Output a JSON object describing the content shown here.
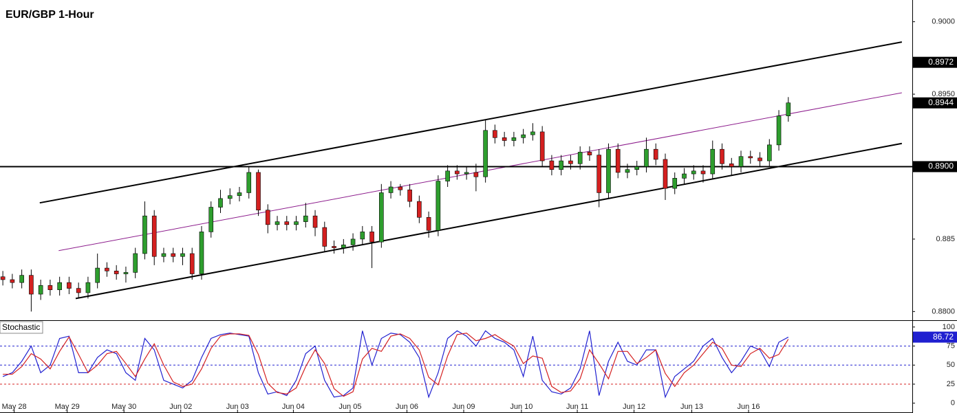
{
  "chart_data": [
    {
      "type": "candlestick",
      "title": "EUR/GBP 1-Hour",
      "x": [
        0,
        1,
        2,
        3,
        4,
        5,
        6,
        7,
        8,
        9,
        10,
        11,
        12,
        13,
        14,
        15,
        16,
        17,
        18,
        19,
        20,
        21,
        22,
        23,
        24,
        25,
        26,
        27,
        28,
        29,
        30,
        31,
        32,
        33,
        34,
        35,
        36,
        37,
        38,
        39,
        40,
        41,
        42,
        43,
        44,
        45,
        46,
        47,
        48,
        49,
        50,
        51,
        52,
        53,
        54,
        55,
        56,
        57,
        58,
        59,
        60,
        61,
        62,
        63,
        64,
        65,
        66,
        67,
        68,
        69,
        70,
        71,
        72,
        73,
        74,
        75,
        76,
        77,
        78,
        79,
        80,
        81,
        82,
        83
      ],
      "open": [
        0.8824,
        0.8822,
        0.882,
        0.8825,
        0.8812,
        0.8818,
        0.8815,
        0.882,
        0.8816,
        0.8813,
        0.882,
        0.883,
        0.8828,
        0.8826,
        0.8827,
        0.884,
        0.8866,
        0.8838,
        0.884,
        0.8838,
        0.884,
        0.8826,
        0.8855,
        0.8872,
        0.8878,
        0.888,
        0.8882,
        0.8896,
        0.887,
        0.886,
        0.8862,
        0.886,
        0.8862,
        0.8866,
        0.8858,
        0.8845,
        0.8844,
        0.8846,
        0.885,
        0.8855,
        0.8848,
        0.8882,
        0.8886,
        0.8884,
        0.8876,
        0.8865,
        0.8856,
        0.889,
        0.8897,
        0.8895,
        0.8896,
        0.8893,
        0.8925,
        0.892,
        0.8918,
        0.892,
        0.8922,
        0.8924,
        0.8904,
        0.8898,
        0.8904,
        0.8902,
        0.891,
        0.8908,
        0.8882,
        0.8912,
        0.8896,
        0.8898,
        0.89,
        0.8912,
        0.8905,
        0.8885,
        0.8892,
        0.8895,
        0.8897,
        0.8895,
        0.8912,
        0.8902,
        0.89,
        0.8907,
        0.8906,
        0.8904,
        0.8915,
        0.8935
      ],
      "high": [
        0.8828,
        0.8826,
        0.8829,
        0.8829,
        0.8822,
        0.8822,
        0.8824,
        0.8824,
        0.882,
        0.8824,
        0.884,
        0.8834,
        0.8832,
        0.8831,
        0.8844,
        0.8876,
        0.887,
        0.8844,
        0.8844,
        0.8844,
        0.8844,
        0.8859,
        0.8876,
        0.8884,
        0.8885,
        0.8886,
        0.89,
        0.8898,
        0.8874,
        0.8866,
        0.8866,
        0.8866,
        0.8875,
        0.887,
        0.8862,
        0.8849,
        0.885,
        0.8854,
        0.8859,
        0.8859,
        0.8888,
        0.889,
        0.8888,
        0.8888,
        0.888,
        0.8869,
        0.8894,
        0.8901,
        0.8901,
        0.89,
        0.8902,
        0.8932,
        0.8929,
        0.8924,
        0.8924,
        0.8926,
        0.893,
        0.8928,
        0.8908,
        0.8908,
        0.8908,
        0.8914,
        0.8914,
        0.8912,
        0.8916,
        0.8916,
        0.8902,
        0.8904,
        0.892,
        0.8916,
        0.8909,
        0.8896,
        0.8899,
        0.8901,
        0.8901,
        0.8918,
        0.8916,
        0.8906,
        0.8911,
        0.8911,
        0.891,
        0.8919,
        0.8939,
        0.8948
      ],
      "low": [
        0.8818,
        0.8816,
        0.8816,
        0.88,
        0.8808,
        0.8811,
        0.8811,
        0.8812,
        0.8809,
        0.8809,
        0.8816,
        0.8824,
        0.8822,
        0.882,
        0.8823,
        0.8836,
        0.8832,
        0.8834,
        0.8834,
        0.8832,
        0.8822,
        0.8822,
        0.8851,
        0.8868,
        0.8874,
        0.8876,
        0.8878,
        0.8866,
        0.8854,
        0.8856,
        0.8856,
        0.8856,
        0.8858,
        0.8852,
        0.8841,
        0.884,
        0.884,
        0.8842,
        0.8846,
        0.883,
        0.8844,
        0.8878,
        0.888,
        0.8872,
        0.8861,
        0.8851,
        0.8852,
        0.8886,
        0.8891,
        0.8891,
        0.8883,
        0.8889,
        0.8916,
        0.8914,
        0.8914,
        0.8916,
        0.8918,
        0.89,
        0.8894,
        0.8894,
        0.8898,
        0.8898,
        0.8904,
        0.8872,
        0.8878,
        0.8892,
        0.8892,
        0.8894,
        0.8896,
        0.8901,
        0.8877,
        0.8881,
        0.8888,
        0.8891,
        0.8889,
        0.8891,
        0.8898,
        0.8894,
        0.8896,
        0.8902,
        0.89,
        0.89,
        0.8911,
        0.8931
      ],
      "close": [
        0.8822,
        0.882,
        0.8825,
        0.8812,
        0.8818,
        0.8815,
        0.882,
        0.8816,
        0.8813,
        0.882,
        0.883,
        0.8828,
        0.8826,
        0.8827,
        0.884,
        0.8866,
        0.8838,
        0.884,
        0.8838,
        0.884,
        0.8826,
        0.8855,
        0.8872,
        0.8878,
        0.888,
        0.8882,
        0.8896,
        0.887,
        0.886,
        0.8862,
        0.886,
        0.8862,
        0.8866,
        0.8858,
        0.8845,
        0.8844,
        0.8846,
        0.885,
        0.8855,
        0.8848,
        0.8882,
        0.8886,
        0.8884,
        0.8876,
        0.8865,
        0.8856,
        0.889,
        0.8897,
        0.8895,
        0.8896,
        0.8893,
        0.8925,
        0.892,
        0.8918,
        0.892,
        0.8922,
        0.8924,
        0.8904,
        0.8898,
        0.8904,
        0.8902,
        0.891,
        0.8908,
        0.8882,
        0.8912,
        0.8896,
        0.8898,
        0.89,
        0.8912,
        0.8905,
        0.8885,
        0.8892,
        0.8895,
        0.8897,
        0.8895,
        0.8912,
        0.8902,
        0.89,
        0.8907,
        0.8906,
        0.8904,
        0.8915,
        0.8935,
        0.8944
      ],
      "up_color": "#2e9e2e",
      "down_color": "#d42020",
      "lines": [
        {
          "x": [
            3.9,
            95.0
          ],
          "y": [
            0.8875,
            0.8986
          ],
          "color": "#000000"
        },
        {
          "x": [
            5.9,
            95.0
          ],
          "y": [
            0.8842,
            0.8951
          ],
          "color": "#8b1a8b"
        },
        {
          "x": [
            7.7,
            95.0
          ],
          "y": [
            0.8809,
            0.8916
          ],
          "color": "#000000"
        },
        {
          "x": [
            -0.3,
            96.1
          ],
          "y": [
            0.89,
            0.89
          ],
          "color": "#000000"
        }
      ],
      "price_labels": [
        0.8972,
        {
          "value": 0.89,
          "label": "0.8900"
        }
      ],
      "xlim": [
        -0.3,
        96.1
      ],
      "ylim": [
        0.8794,
        0.9015
      ],
      "yticks": [
        {
          "value": 0.88,
          "label": "0.8800"
        },
        0.885,
        {
          "value": 0.895,
          "label": "0.8950"
        },
        {
          "value": 0.9,
          "label": "0.9000"
        }
      ]
    },
    {
      "type": "line",
      "title": "Stochastic",
      "x": [
        0,
        1,
        2,
        3,
        4,
        5,
        6,
        7,
        8,
        9,
        10,
        11,
        12,
        13,
        14,
        15,
        16,
        17,
        18,
        19,
        20,
        21,
        22,
        23,
        24,
        25,
        26,
        27,
        28,
        29,
        30,
        31,
        32,
        33,
        34,
        35,
        36,
        37,
        38,
        39,
        40,
        41,
        42,
        43,
        44,
        45,
        46,
        47,
        48,
        49,
        50,
        51,
        52,
        53,
        54,
        55,
        56,
        57,
        58,
        59,
        60,
        61,
        62,
        63,
        64,
        65,
        66,
        67,
        68,
        69,
        70,
        71,
        72,
        73,
        74,
        75,
        76,
        77,
        78,
        79,
        80,
        81,
        82,
        83
      ],
      "series": [
        {
          "color": "#2020d0",
          "values": [
            35,
            40,
            55,
            75,
            40,
            50,
            85,
            88,
            40,
            40,
            60,
            70,
            65,
            40,
            30,
            85,
            70,
            30,
            25,
            20,
            30,
            60,
            85,
            90,
            92,
            90,
            88,
            40,
            12,
            15,
            10,
            30,
            65,
            75,
            30,
            8,
            10,
            20,
            95,
            50,
            85,
            92,
            90,
            80,
            60,
            8,
            40,
            85,
            95,
            88,
            75,
            95,
            85,
            80,
            70,
            35,
            88,
            30,
            15,
            12,
            20,
            45,
            95,
            10,
            55,
            80,
            55,
            50,
            70,
            70,
            8,
            35,
            45,
            55,
            75,
            85,
            60,
            40,
            55,
            75,
            70,
            48,
            80,
            86.72
          ]
        },
        {
          "color": "#d42020",
          "values": [
            38,
            38,
            48,
            65,
            58,
            45,
            68,
            87,
            64,
            40,
            50,
            65,
            68,
            52,
            35,
            58,
            78,
            50,
            28,
            22,
            25,
            45,
            72,
            88,
            91,
            91,
            89,
            64,
            26,
            14,
            12,
            20,
            48,
            70,
            52,
            19,
            9,
            15,
            58,
            72,
            68,
            88,
            91,
            85,
            70,
            34,
            24,
            62,
            90,
            92,
            82,
            85,
            90,
            82,
            75,
            52,
            62,
            59,
            22,
            14,
            16,
            32,
            70,
            52,
            32,
            68,
            68,
            52,
            60,
            70,
            39,
            22,
            40,
            50,
            65,
            80,
            72,
            50,
            48,
            65,
            72,
            59,
            64,
            84
          ]
        }
      ],
      "levels": [
        {
          "value": 75,
          "color": "#2020d0"
        },
        {
          "value": 50,
          "color": "#2020d0"
        },
        {
          "value": 25,
          "color": "#d42020"
        }
      ],
      "xlim": [
        -0.3,
        96.1
      ],
      "ylim": [
        -12,
        108
      ],
      "yticks": [
        0,
        25,
        50,
        75,
        100
      ],
      "xticks": [
        {
          "value": 1.2,
          "label": "May 28"
        },
        {
          "value": 6.8,
          "label": "May 29"
        },
        {
          "value": 12.8,
          "label": "May 30"
        },
        {
          "value": 18.8,
          "label": "Jun 02"
        },
        {
          "value": 24.8,
          "label": "Jun 03"
        },
        {
          "value": 30.7,
          "label": "Jun 04"
        },
        {
          "value": 36.7,
          "label": "Jun 05"
        },
        {
          "value": 42.7,
          "label": "Jun 06"
        },
        {
          "value": 48.7,
          "label": "Jun 09"
        },
        {
          "value": 54.8,
          "label": "Jun 10"
        },
        {
          "value": 60.7,
          "label": "Jun 11"
        },
        {
          "value": 66.7,
          "label": "Jun 12"
        },
        {
          "value": 72.8,
          "label": "Jun 13"
        },
        {
          "value": 78.8,
          "label": "Jun 16"
        }
      ]
    }
  ]
}
